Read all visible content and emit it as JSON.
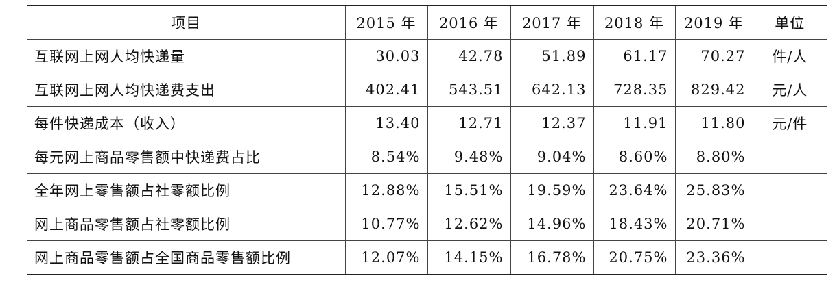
{
  "table": {
    "header": [
      "项目",
      "2015 年",
      "2016 年",
      "2017 年",
      "2018 年",
      "2019 年",
      "单位"
    ],
    "rows": [
      {
        "label": "互联网上网人均快递量",
        "values": [
          "30.03",
          "42.78",
          "51.89",
          "61.17",
          "70.27"
        ],
        "unit": "件/人"
      },
      {
        "label": "互联网上网人均快递费支出",
        "values": [
          "402.41",
          "543.51",
          "642.13",
          "728.35",
          "829.42"
        ],
        "unit": "元/人"
      },
      {
        "label": "每件快递成本（收入）",
        "values": [
          "13.40",
          "12.71",
          "12.37",
          "11.91",
          "11.80"
        ],
        "unit": "元/件"
      },
      {
        "label": "每元网上商品零售额中快递费占比",
        "values": [
          "8.54%",
          "9.48%",
          "9.04%",
          "8.60%",
          "8.80%"
        ]
      },
      {
        "label": "全年网上零售额占社零额比例",
        "values": [
          "12.88%",
          "15.51%",
          "19.59%",
          "23.64%",
          "25.83%"
        ]
      },
      {
        "label": "网上商品零售额占社零额比例",
        "values": [
          "10.77%",
          "12.62%",
          "14.96%",
          "18.43%",
          "20.71%"
        ]
      },
      {
        "label": "网上商品零售额占全国商品零售额比例",
        "values": [
          "12.07%",
          "14.15%",
          "16.78%",
          "20.75%",
          "23.36%"
        ]
      }
    ]
  }
}
